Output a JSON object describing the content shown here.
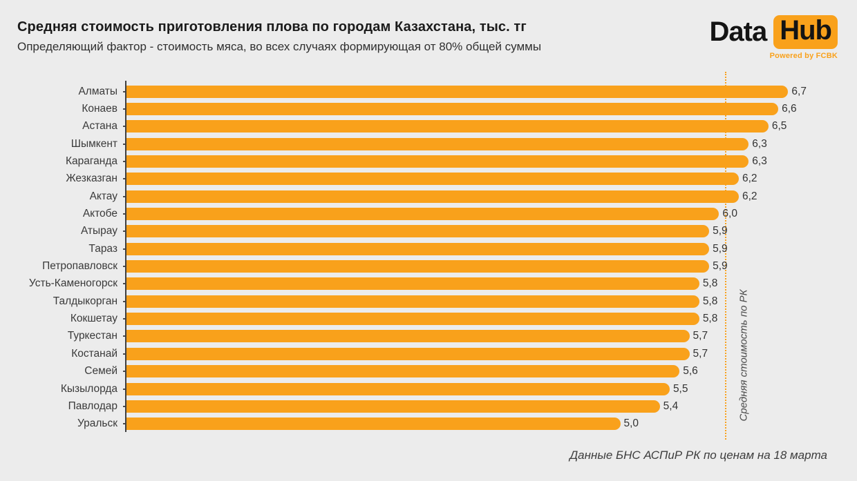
{
  "header": {
    "title": "Средняя стоимость приготовления плова по городам Казахстана, тыс. тг",
    "subtitle": "Определяющий фактор - стоимость мяса, во всех случаях формирующая от 80% общей суммы"
  },
  "logo": {
    "text_data": "Data",
    "text_hub": "Hub",
    "tagline": "Powered by FCBK",
    "accent_color": "#F9A11B",
    "text_color": "#141414"
  },
  "chart_data": {
    "type": "bar",
    "orientation": "horizontal",
    "title": "Средняя стоимость приготовления плова по городам Казахстана, тыс. тг",
    "unit": "тыс. тг",
    "categories": [
      "Алматы",
      "Конаев",
      "Астана",
      "Шымкент",
      "Караганда",
      "Жезказган",
      "Актау",
      "Актобе",
      "Атырау",
      "Тараз",
      "Петропавловск",
      "Усть-Каменогорск",
      "Талдыкорган",
      "Кокшетау",
      "Туркестан",
      "Костанай",
      "Семей",
      "Кызылорда",
      "Павлодар",
      "Уральск"
    ],
    "values": [
      6.7,
      6.6,
      6.5,
      6.3,
      6.3,
      6.2,
      6.2,
      6.0,
      5.9,
      5.9,
      5.9,
      5.8,
      5.8,
      5.8,
      5.7,
      5.7,
      5.6,
      5.5,
      5.4,
      5.0
    ],
    "xlim": [
      0,
      7.2
    ],
    "grid": false,
    "legend": false,
    "decimal_separator": ",",
    "bar_color": "#F9A11B",
    "reference_line": {
      "value": 6.06,
      "label": "Средняя стоимость по РК",
      "color": "#F9A11B",
      "style": "dotted"
    }
  },
  "footer": {
    "source": "Данные БНС АСПиР РК по ценам на 18 марта"
  }
}
